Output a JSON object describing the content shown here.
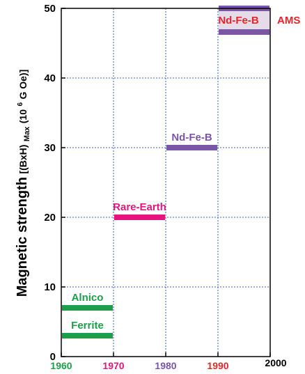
{
  "chart_data": {
    "type": "bar",
    "orientation": "horizontal-range",
    "ylabel_main": "Magnetic strength",
    "ylabel_sub": "[(BxH)",
    "ylabel_sub_small": "Max",
    "ylabel_unit_pre": " (10",
    "ylabel_unit_exp": "6",
    "ylabel_unit_post": " G Oe)]",
    "xlim": [
      1960,
      2000
    ],
    "ylim": [
      0,
      50
    ],
    "grid": true,
    "x_ticks": [
      {
        "value": 1960,
        "label": "1960",
        "color": "#1aa04b"
      },
      {
        "value": 1970,
        "label": "1970",
        "color": "#e6157e"
      },
      {
        "value": 1980,
        "label": "1980",
        "color": "#7a55a8"
      },
      {
        "value": 1990,
        "label": "1990",
        "color": "#e2262b"
      },
      {
        "value": 2000,
        "label": "2000",
        "color": "#000000"
      }
    ],
    "y_ticks": [
      {
        "value": 0,
        "label": "0"
      },
      {
        "value": 10,
        "label": "10"
      },
      {
        "value": 20,
        "label": "20"
      },
      {
        "value": 30,
        "label": "30"
      },
      {
        "value": 40,
        "label": "40"
      },
      {
        "value": 50,
        "label": "50"
      }
    ],
    "bars": [
      {
        "label": "Ferrite",
        "x_start": 1960,
        "x_end": 1970,
        "value": 3,
        "color": "#1aa04b"
      },
      {
        "label": "Alnico",
        "x_start": 1960,
        "x_end": 1970,
        "value": 7,
        "color": "#1aa04b"
      },
      {
        "label": "Rare-Earth",
        "x_start": 1970,
        "x_end": 1980,
        "value": 20,
        "color": "#e6157e"
      },
      {
        "label": "Nd-Fe-B",
        "x_start": 1980,
        "x_end": 1990,
        "value": 30,
        "color": "#7a55a8"
      },
      {
        "label": "",
        "x_start": 1990,
        "x_end": 2000,
        "value": 50,
        "color": "#7a55a8"
      },
      {
        "label": "",
        "x_start": 1990,
        "x_end": 2000,
        "value": 46.6,
        "color": "#7a55a8"
      }
    ],
    "band": {
      "x_start": 1990,
      "x_end": 2000,
      "y_low": 46.6,
      "y_high": 50,
      "color": "#e6dce9"
    },
    "band_labels": [
      {
        "text": "Nd-Fe-B",
        "color": "#e2262b"
      },
      {
        "text": "AMS",
        "color": "#e2262b"
      }
    ]
  }
}
